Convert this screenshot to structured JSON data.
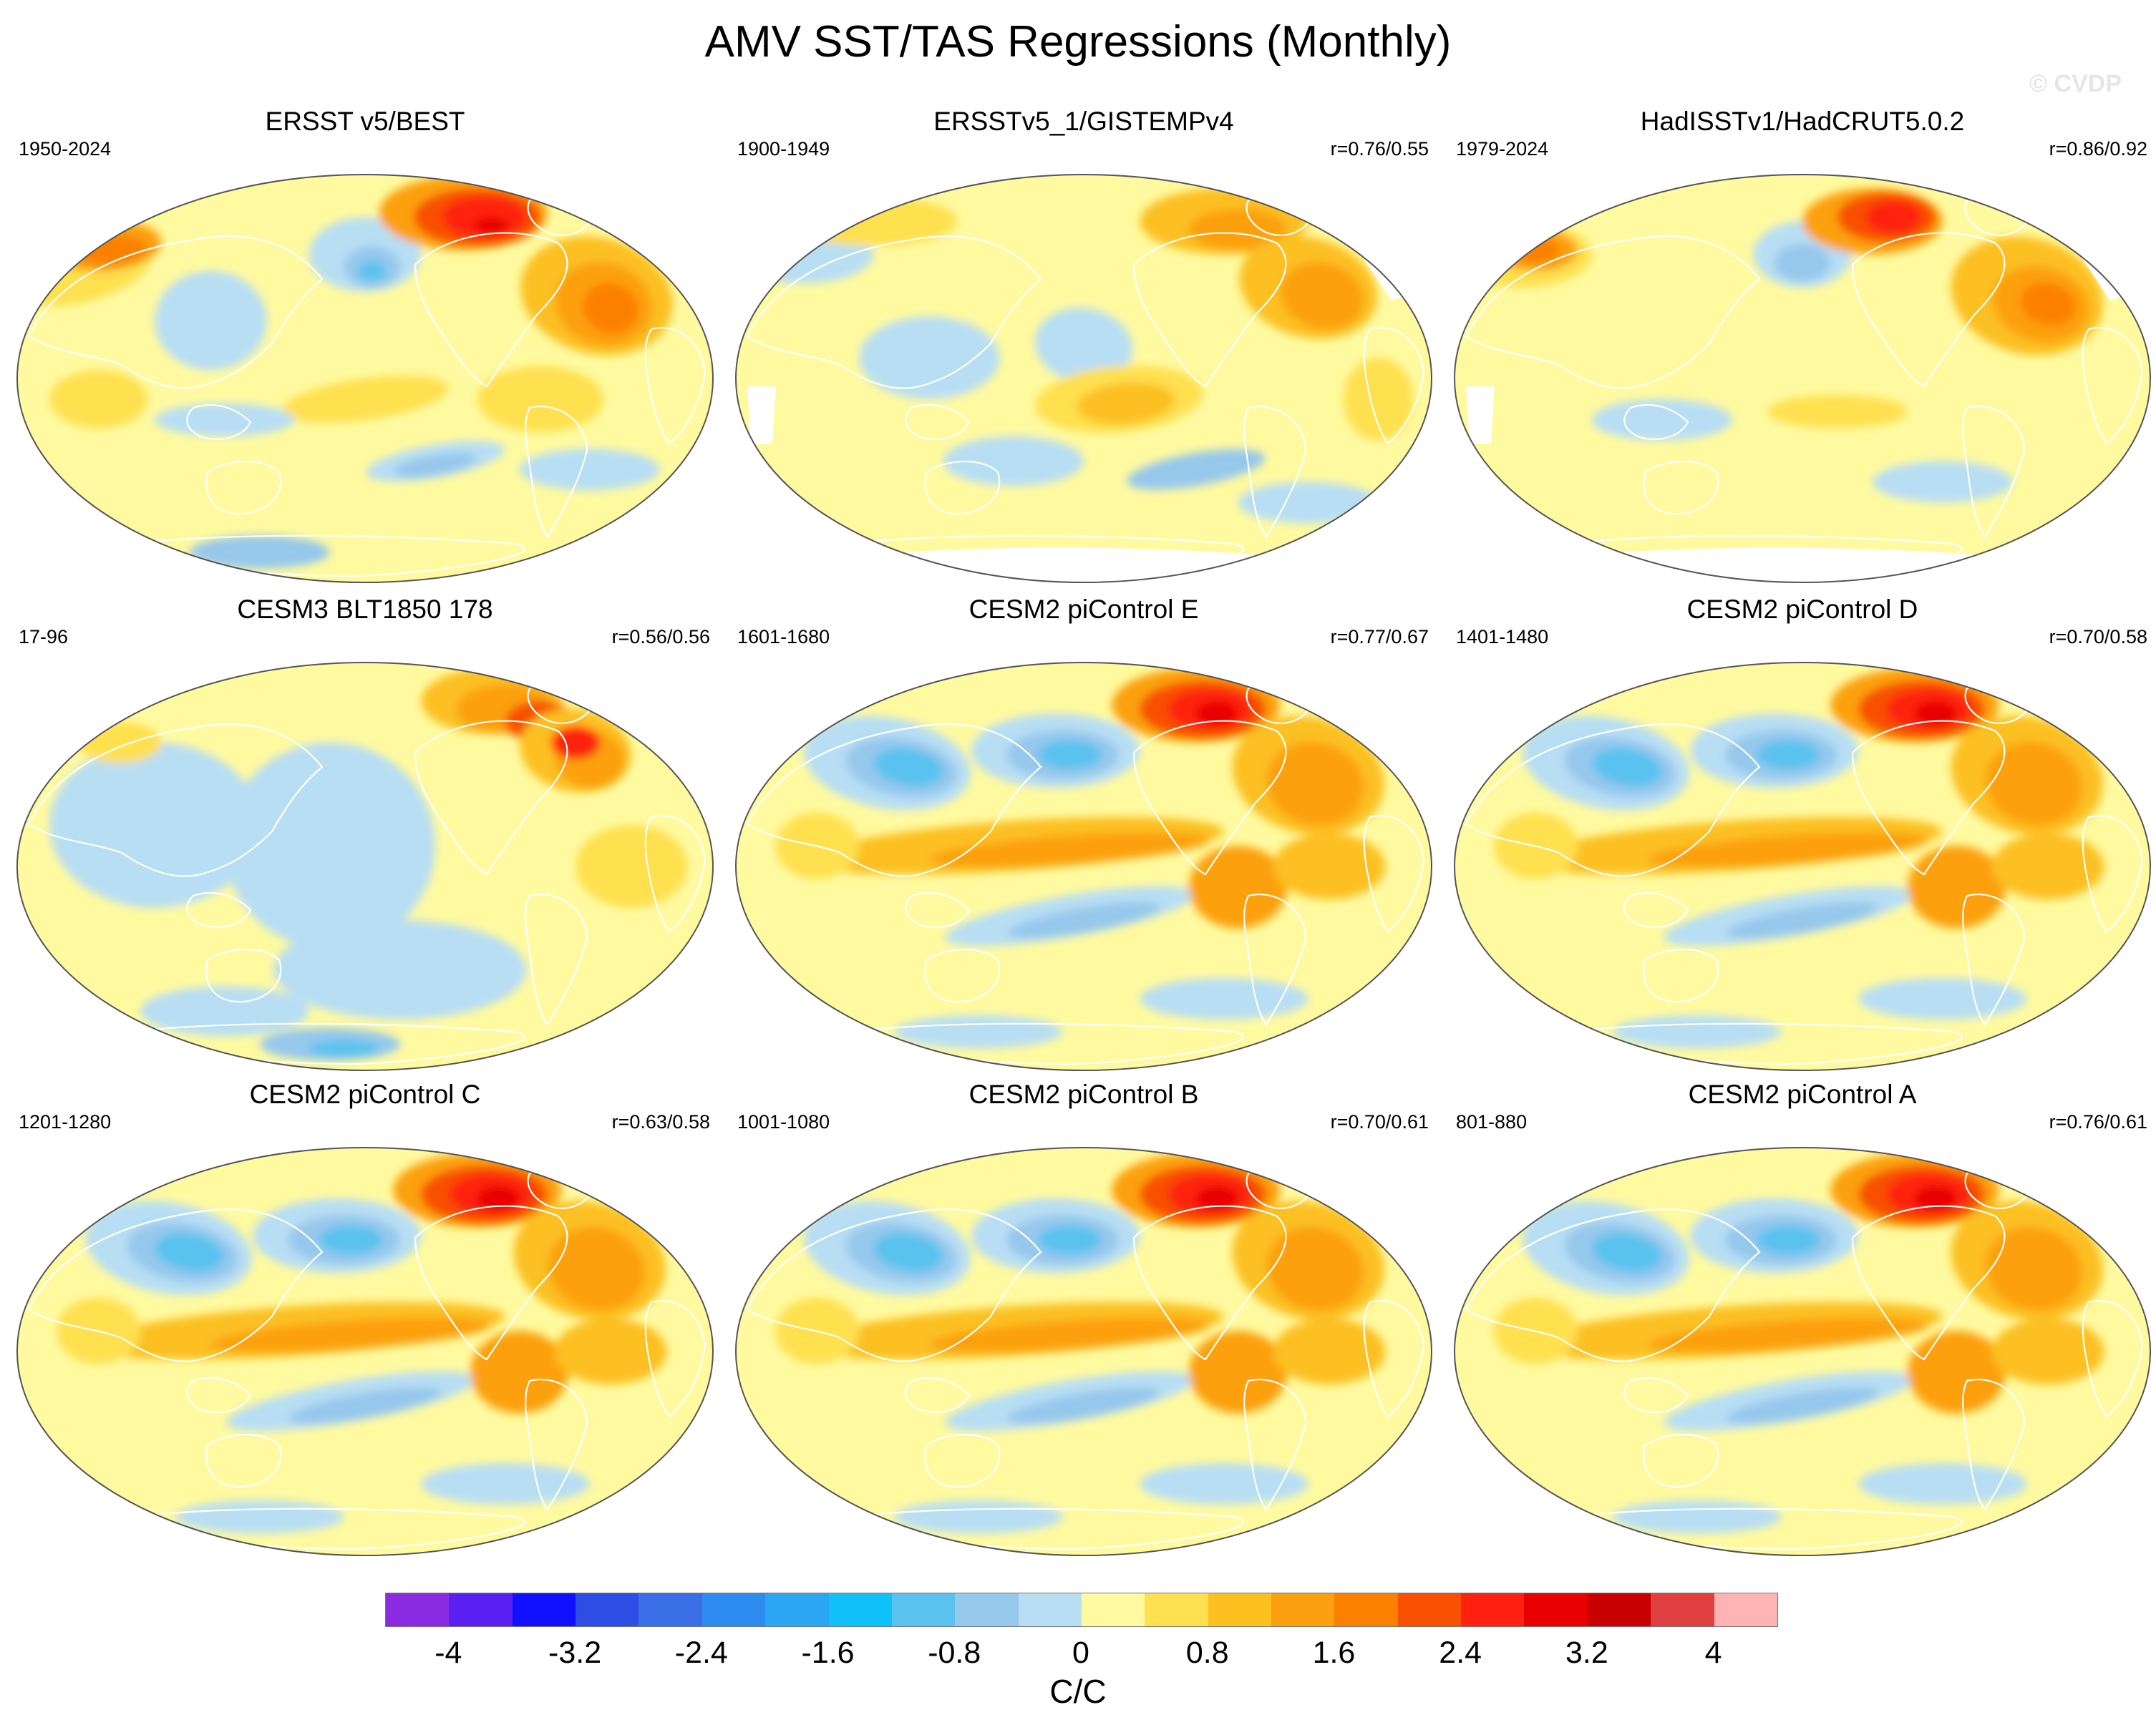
{
  "title": "AMV SST/TAS Regressions (Monthly)",
  "watermark": "© CVDP",
  "panels": [
    {
      "title": "ERSST v5/BEST",
      "years": "1950-2024",
      "corr": "",
      "pattern": "obs1",
      "missing": false
    },
    {
      "title": "ERSSTv5_1/GISTEMPv4",
      "years": "1900-1949",
      "corr": "r=0.76/0.55",
      "pattern": "obs2",
      "missing": true
    },
    {
      "title": "HadISSTv1/HadCRUT5.0.2",
      "years": "1979-2024",
      "corr": "r=0.86/0.92",
      "pattern": "obs3",
      "missing": true
    },
    {
      "title": "CESM3 BLT1850 178",
      "years": "17-96",
      "corr": "r=0.56/0.56",
      "pattern": "cesm3",
      "missing": false
    },
    {
      "title": "CESM2 piControl E",
      "years": "1601-1680",
      "corr": "r=0.77/0.67",
      "pattern": "model",
      "missing": false
    },
    {
      "title": "CESM2 piControl D",
      "years": "1401-1480",
      "corr": "r=0.70/0.58",
      "pattern": "model",
      "missing": false
    },
    {
      "title": "CESM2 piControl C",
      "years": "1201-1280",
      "corr": "r=0.63/0.58",
      "pattern": "model",
      "missing": false
    },
    {
      "title": "CESM2 piControl B",
      "years": "1001-1080",
      "corr": "r=0.70/0.61",
      "pattern": "model",
      "missing": false
    },
    {
      "title": "CESM2 piControl A",
      "years": "801-880",
      "corr": "r=0.76/0.61",
      "pattern": "model",
      "missing": false
    }
  ],
  "colorbar": {
    "colors": [
      "#8a2be2",
      "#5a1ff2",
      "#1010ff",
      "#2e4de4",
      "#3a6ee6",
      "#2e8cf0",
      "#2aa6f2",
      "#10c0f8",
      "#5ac2ee",
      "#96c8ec",
      "#b8def4",
      "#fffaa0",
      "#ffe050",
      "#fcc020",
      "#fca010",
      "#fc8000",
      "#f85000",
      "#ff2010",
      "#e80000",
      "#c80000",
      "#e04040",
      "#ffb4b4"
    ],
    "ticks": [
      "-4",
      "-3.2",
      "-2.4",
      "-1.6",
      "-0.8",
      "0",
      "0.8",
      "1.6",
      "2.4",
      "3.2",
      "4"
    ],
    "label": "C/C"
  }
}
